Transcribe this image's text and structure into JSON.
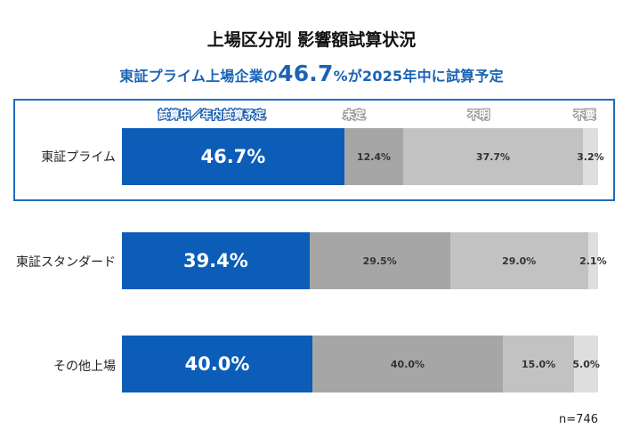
{
  "chart_data": {
    "type": "bar",
    "orientation": "horizontal-stacked-100",
    "title": "上場区分別 影響額試算状況",
    "subtitle": {
      "prefix": "東証プライム上場企業の",
      "highlight": "46.7",
      "highlight_unit": "%が",
      "suffix": "2025年中に試算予定"
    },
    "legend": [
      "試算中／年内試算予定",
      "未定",
      "不明",
      "不要"
    ],
    "categories": [
      "東証プライム",
      "東証スタンダード",
      "その他上場"
    ],
    "series": [
      {
        "name": "試算中／年内試算予定",
        "values": [
          46.7,
          39.4,
          40.0
        ],
        "color": "#0b5db8",
        "labels": [
          "46.7%",
          "39.4%",
          "40.0%"
        ]
      },
      {
        "name": "未定",
        "values": [
          12.4,
          29.5,
          40.0
        ],
        "color": "#a6a6a6",
        "labels": [
          "12.4%",
          "29.5%",
          "40.0%"
        ]
      },
      {
        "name": "不明",
        "values": [
          37.7,
          29.0,
          15.0
        ],
        "color": "#c2c2c2",
        "labels": [
          "37.7%",
          "29.0%",
          "15.0%"
        ]
      },
      {
        "name": "不要",
        "values": [
          3.2,
          2.1,
          5.0
        ],
        "color": "#dedede",
        "labels": [
          "3.2%",
          "2.1%",
          "5.0%"
        ]
      }
    ],
    "highlighted_category": "東証プライム",
    "note": "n=746"
  }
}
